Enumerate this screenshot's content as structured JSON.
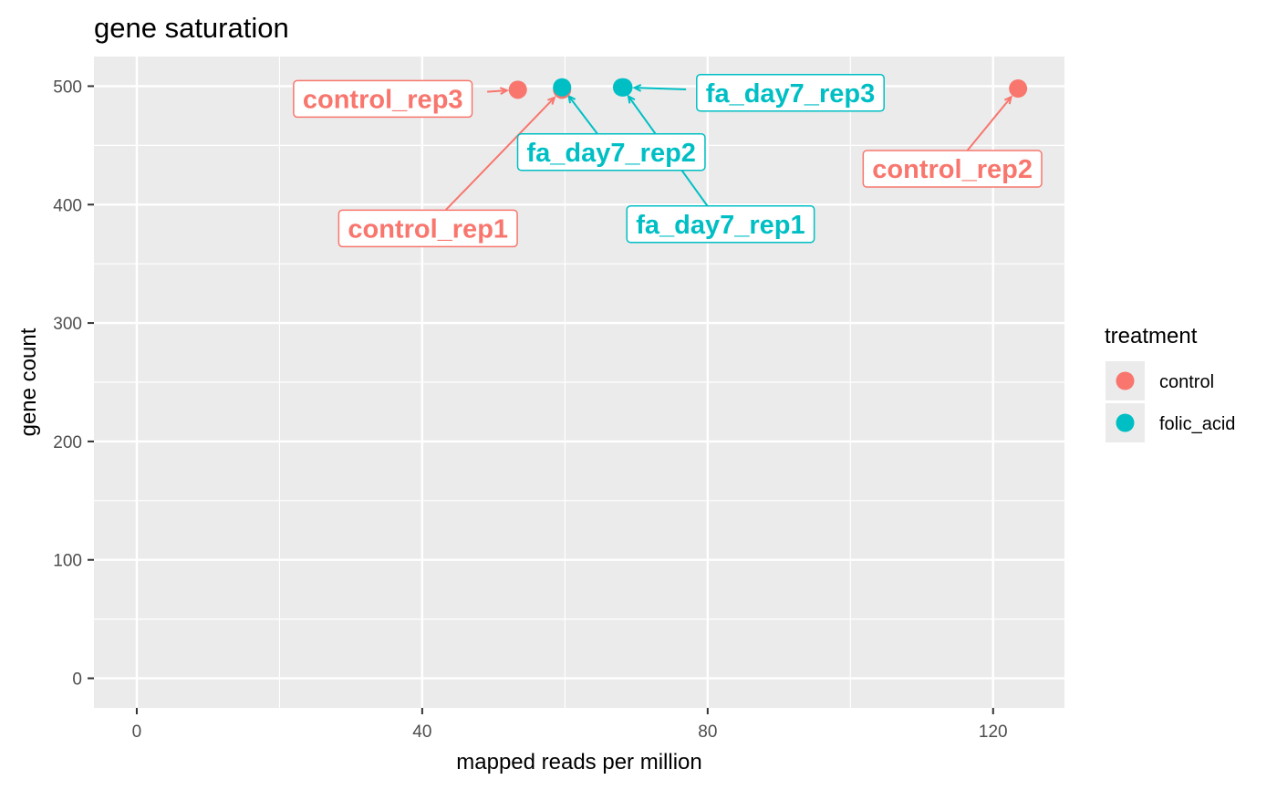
{
  "chart_data": {
    "type": "scatter",
    "title": "gene saturation",
    "xlabel": "mapped reads per million",
    "ylabel": "gene count",
    "xlim": [
      -6,
      130
    ],
    "ylim": [
      -25,
      525
    ],
    "xticks": [
      0,
      40,
      80,
      120
    ],
    "xtick_labels": [
      "0",
      "40",
      "80",
      "120"
    ],
    "yticks": [
      0,
      100,
      200,
      300,
      400,
      500
    ],
    "ytick_labels": [
      "0",
      "100",
      "200",
      "300",
      "400",
      "500"
    ],
    "grid": true,
    "legend": {
      "title": "treatment",
      "position": "right",
      "entries": [
        {
          "label": "control",
          "color": "#F8766D"
        },
        {
          "label": "folic_acid",
          "color": "#00BFC4"
        }
      ]
    },
    "series": [
      {
        "name": "control",
        "color": "#F8766D",
        "points": [
          {
            "label": "control_rep3",
            "x": 53.4,
            "y": 497
          },
          {
            "label": "control_rep1",
            "x": 59.6,
            "y": 497
          },
          {
            "label": "control_rep2",
            "x": 123.5,
            "y": 498
          }
        ]
      },
      {
        "name": "folic_acid",
        "color": "#00BFC4",
        "points": [
          {
            "label": "fa_day7_rep2",
            "x": 59.6,
            "y": 499
          },
          {
            "label": "fa_day7_rep1",
            "x": 68.0,
            "y": 499
          },
          {
            "label": "fa_day7_rep3",
            "x": 68.2,
            "y": 499
          }
        ]
      }
    ]
  }
}
